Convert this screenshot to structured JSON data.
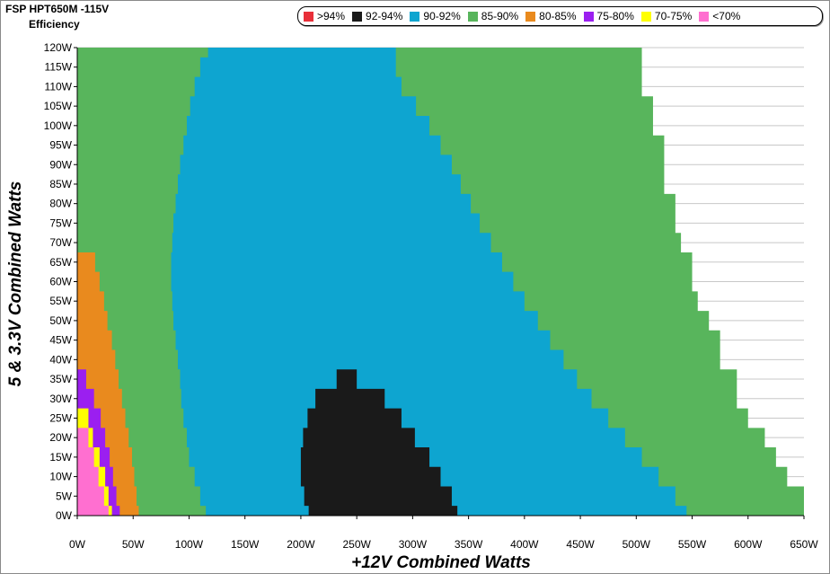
{
  "header": {
    "title": "FSP HPT650M -115V",
    "subtitle": "Efficiency"
  },
  "legend": [
    {
      "label": ">94%",
      "color": "#e8303a"
    },
    {
      "label": "92-94%",
      "color": "#1a1a1a"
    },
    {
      "label": "90-92%",
      "color": "#0ea5d0"
    },
    {
      "label": "85-90%",
      "color": "#58b55c"
    },
    {
      "label": "80-85%",
      "color": "#e98a1e"
    },
    {
      "label": "75-80%",
      "color": "#9b1ff0"
    },
    {
      "label": "70-75%",
      "color": "#ffff00"
    },
    {
      "label": "<70%",
      "color": "#ff6fd0"
    }
  ],
  "chart_data": {
    "type": "heatmap",
    "title": "FSP HPT650M -115V",
    "subtitle": "Efficiency",
    "xlabel": "+12V Combined Watts",
    "ylabel": "5 & 3.3V Combined Watts",
    "x_ticks": [
      "0W",
      "50W",
      "100W",
      "150W",
      "200W",
      "250W",
      "300W",
      "350W",
      "400W",
      "450W",
      "500W",
      "550W",
      "600W",
      "650W"
    ],
    "y_ticks": [
      "0W",
      "5W",
      "10W",
      "15W",
      "20W",
      "25W",
      "30W",
      "35W",
      "40W",
      "45W",
      "50W",
      "55W",
      "60W",
      "65W",
      "70W",
      "75W",
      "80W",
      "85W",
      "90W",
      "95W",
      "100W",
      "105W",
      "110W",
      "115W",
      "120W"
    ],
    "xlim": [
      0,
      650
    ],
    "ylim": [
      0,
      120
    ],
    "grid": true,
    "y_levels": [
      0,
      5,
      10,
      15,
      20,
      25,
      30,
      35,
      40,
      45,
      50,
      55,
      60,
      65,
      70,
      75,
      80,
      85,
      90,
      95,
      100,
      105,
      110,
      115,
      120
    ],
    "zones": [
      {
        "name": "85-90%",
        "color": "#58b55c",
        "x_min": [
          0,
          0,
          0,
          0,
          0,
          0,
          0,
          0,
          0,
          0,
          0,
          0,
          0,
          0,
          0,
          0,
          0,
          0,
          0,
          0,
          0,
          0,
          0,
          0,
          0
        ],
        "x_max": [
          650,
          650,
          635,
          625,
          615,
          600,
          590,
          590,
          575,
          575,
          565,
          555,
          550,
          550,
          540,
          535,
          535,
          525,
          525,
          525,
          515,
          515,
          505,
          505,
          505
        ]
      },
      {
        "name": "80-85%",
        "color": "#e98a1e",
        "x_min": [
          0,
          0,
          0,
          0,
          0,
          0,
          0,
          0,
          0,
          0,
          0,
          0,
          0,
          0,
          null,
          null,
          null,
          null,
          null,
          null,
          null,
          null,
          null,
          null,
          null
        ],
        "x_max": [
          55,
          53,
          51,
          49,
          46,
          43,
          40,
          37,
          34,
          31,
          27,
          24,
          20,
          16,
          null,
          null,
          null,
          null,
          null,
          null,
          null,
          null,
          null,
          null,
          null
        ]
      },
      {
        "name": "90-92%",
        "color": "#0ea5d0",
        "x_min": [
          115,
          110,
          105,
          100,
          98,
          95,
          93,
          92,
          90,
          88,
          86,
          85,
          84,
          84,
          85,
          86,
          88,
          90,
          92,
          95,
          98,
          101,
          105,
          110,
          117
        ],
        "x_max": [
          545,
          535,
          520,
          505,
          490,
          475,
          460,
          447,
          435,
          423,
          412,
          400,
          390,
          380,
          370,
          360,
          352,
          343,
          335,
          325,
          315,
          303,
          290,
          285,
          285
        ]
      },
      {
        "name": "75-80%",
        "color": "#9b1ff0",
        "x_min": [
          0,
          0,
          0,
          0,
          0,
          0,
          0,
          0,
          null,
          null,
          null,
          null,
          null,
          null,
          null,
          null,
          null,
          null,
          null,
          null,
          null,
          null,
          null,
          null,
          null
        ],
        "x_max": [
          38,
          35,
          32,
          29,
          25,
          21,
          15,
          8,
          null,
          null,
          null,
          null,
          null,
          null,
          null,
          null,
          null,
          null,
          null,
          null,
          null,
          null,
          null,
          null,
          null
        ]
      },
      {
        "name": "92-94%",
        "color": "#1a1a1a",
        "x_min": [
          207,
          203,
          200,
          200,
          202,
          206,
          213,
          232,
          null,
          null,
          null,
          null,
          null,
          null,
          null,
          null,
          null,
          null,
          null,
          null,
          null,
          null,
          null,
          null,
          null
        ],
        "x_max": [
          340,
          335,
          325,
          315,
          302,
          290,
          275,
          250,
          null,
          null,
          null,
          null,
          null,
          null,
          null,
          null,
          null,
          null,
          null,
          null,
          null,
          null,
          null,
          null,
          null
        ]
      },
      {
        "name": "70-75%",
        "color": "#ffff00",
        "x_min": [
          0,
          0,
          0,
          0,
          0,
          0,
          null,
          null,
          null,
          null,
          null,
          null,
          null,
          null,
          null,
          null,
          null,
          null,
          null,
          null,
          null,
          null,
          null,
          null,
          null
        ],
        "x_max": [
          31,
          28,
          25,
          20,
          14,
          10,
          null,
          null,
          null,
          null,
          null,
          null,
          null,
          null,
          null,
          null,
          null,
          null,
          null,
          null,
          null,
          null,
          null,
          null,
          null
        ]
      },
      {
        "name": "<70%",
        "color": "#ff6fd0",
        "x_min": [
          0,
          0,
          0,
          0,
          0,
          null,
          null,
          null,
          null,
          null,
          null,
          null,
          null,
          null,
          null,
          null,
          null,
          null,
          null,
          null,
          null,
          null,
          null,
          null,
          null
        ],
        "x_max": [
          28,
          24,
          19,
          15,
          10,
          null,
          null,
          null,
          null,
          null,
          null,
          null,
          null,
          null,
          null,
          null,
          null,
          null,
          null,
          null,
          null,
          null,
          null,
          null,
          null
        ]
      }
    ]
  }
}
